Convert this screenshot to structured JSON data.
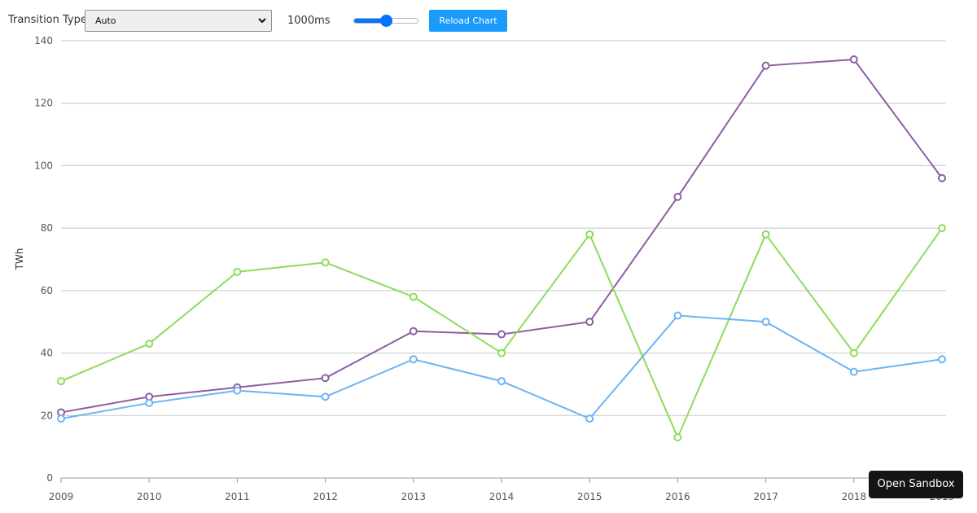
{
  "controls": {
    "transition_label": "Transition Type",
    "transition_value": "Auto",
    "duration_label": "1000ms",
    "duration_fraction": 0.5,
    "reload_label": "Reload Chart"
  },
  "sandbox_label": "Open Sandbox",
  "colors": {
    "gridline": "#c8c8c8",
    "axis": "#9a9a9a",
    "tick_text": "#555555",
    "button": "#1a9bfc",
    "slider": "#0075ff"
  },
  "chart_data": {
    "type": "line",
    "title": "",
    "xlabel": "",
    "ylabel": "TWh",
    "ylim": [
      0,
      140
    ],
    "yticks": [
      0,
      20,
      40,
      60,
      80,
      100,
      120,
      140
    ],
    "grid": true,
    "categories": [
      "2009",
      "2010",
      "2011",
      "2012",
      "2013",
      "2014",
      "2015",
      "2016",
      "2017",
      "2018",
      "2019"
    ],
    "series": [
      {
        "color": "#8e5ea2",
        "values": [
          21,
          26,
          29,
          32,
          47,
          46,
          50,
          90,
          132,
          134,
          96
        ]
      },
      {
        "color": "#8ddc5a",
        "values": [
          31,
          43,
          66,
          69,
          58,
          40,
          78,
          13,
          78,
          40,
          80
        ]
      },
      {
        "color": "#6cb4f4",
        "values": [
          19,
          24,
          28,
          26,
          38,
          31,
          19,
          52,
          50,
          34,
          38
        ]
      }
    ]
  }
}
